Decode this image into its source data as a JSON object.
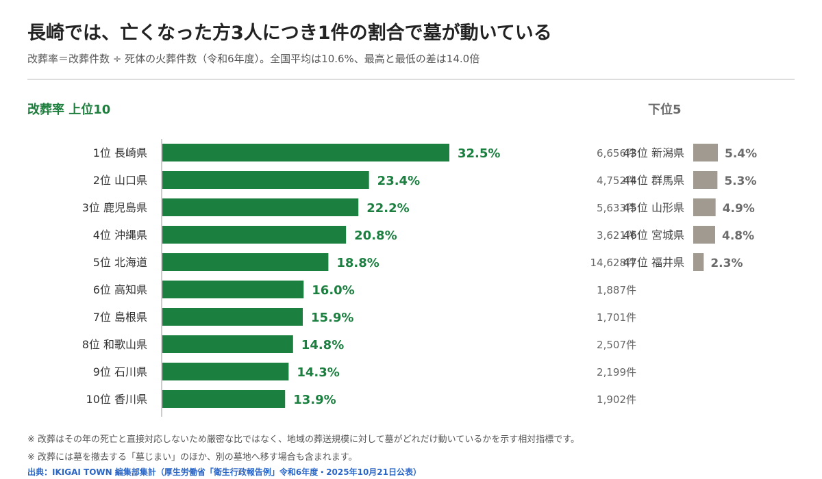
{
  "title": "長崎では、亡くなった方3人につき1件の割合で墓が動いている",
  "subtitle": "改葬率＝改葬件数 ÷ 死体の火葬件数（令和6年度）。全国平均は10.6%、最高と最低の差は14.0倍",
  "top_heading": "改葬率 上位10",
  "bottom_heading": "下位5",
  "notes": [
    "※ 改葬はその年の死亡と直接対応しないため厳密な比ではなく、地域の葬送規模に対して墓がどれだけ動いているかを示す相対指標です。",
    "※ 改葬には墓を撤去する「墓じまい」のほか、別の墓地へ移す場合も含まれます。"
  ],
  "source": "出典：IKIGAI TOWN 編集部集計（厚生労働省「衛生行政報告例」令和6年度・2025年10月21日公表）",
  "colors": {
    "top_bar": "#1a7f3f",
    "top_value": "#1a7f3f",
    "bottom_bar": "#a09a90",
    "bottom_value": "#6b6b6b"
  },
  "chart_data": {
    "type": "bar",
    "orientation": "horizontal",
    "xlim": [
      0,
      32.5
    ],
    "top10": {
      "categories": [
        "1位 長崎県",
        "2位 山口県",
        "3位 鹿児島県",
        "4位 沖縄県",
        "5位 北海道",
        "6位 高知県",
        "7位 島根県",
        "8位 和歌山県",
        "9位 石川県",
        "10位 香川県"
      ],
      "values": [
        32.5,
        23.4,
        22.2,
        20.8,
        18.8,
        16.0,
        15.9,
        14.8,
        14.3,
        13.9
      ],
      "value_labels": [
        "32.5%",
        "23.4%",
        "22.2%",
        "20.8%",
        "18.8%",
        "16.0%",
        "15.9%",
        "14.8%",
        "14.3%",
        "13.9%"
      ],
      "counts": [
        "6,656件",
        "4,752件",
        "5,633件",
        "3,621件",
        "14,628件",
        "1,887件",
        "1,701件",
        "2,507件",
        "2,199件",
        "1,902件"
      ]
    },
    "bottom5": {
      "categories": [
        "43位 新潟県",
        "44位 群馬県",
        "45位 山形県",
        "46位 宮城県",
        "47位 福井県"
      ],
      "values": [
        5.4,
        5.3,
        4.9,
        4.8,
        2.3
      ],
      "value_labels": [
        "5.4%",
        "5.3%",
        "4.9%",
        "4.8%",
        "2.3%"
      ]
    }
  }
}
